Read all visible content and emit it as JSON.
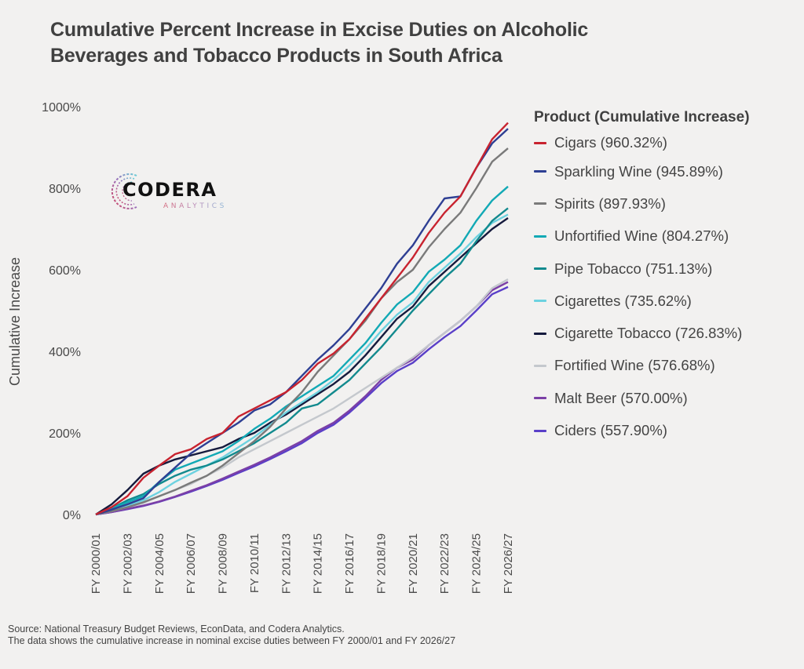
{
  "title": {
    "line1": "Cumulative Percent Increase in Excise Duties on Alcoholic",
    "line2": "Beverages and Tobacco Products in South Africa"
  },
  "logo": {
    "name": "CODERA",
    "sub": "ANALYTICS"
  },
  "legend": {
    "title": "Product (Cumulative Increase)"
  },
  "footnote": {
    "line1": "Source: National Treasury Budget Reviews, EconData, and Codera Analytics.",
    "line2": "The data shows the cumulative increase in nominal excise duties between FY 2000/01 and FY 2026/27"
  },
  "chart_data": {
    "type": "line",
    "title": "Cumulative Percent Increase in Excise Duties on Alcoholic Beverages and Tobacco Products in South Africa",
    "xlabel": "",
    "ylabel": "Cumulative Increase",
    "ylim": [
      0,
      1000
    ],
    "yticks": [
      0,
      200,
      400,
      600,
      800,
      1000
    ],
    "ytick_labels": [
      "0%",
      "200%",
      "400%",
      "600%",
      "800%",
      "1000%"
    ],
    "grid": false,
    "legend_position": "right",
    "x": [
      "FY 2000/01",
      "FY 2001/02",
      "FY 2002/03",
      "FY 2003/04",
      "FY 2004/05",
      "FY 2005/06",
      "FY 2006/07",
      "FY 2007/08",
      "FY 2008/09",
      "FY 2009/10",
      "FY 2010/11",
      "FY 2011/12",
      "FY 2012/13",
      "FY 2013/14",
      "FY 2014/15",
      "FY 2015/16",
      "FY 2016/17",
      "FY 2017/18",
      "FY 2018/19",
      "FY 2019/20",
      "FY 2020/21",
      "FY 2021/22",
      "FY 2022/23",
      "FY 2023/24",
      "FY 2024/25",
      "FY 2025/26",
      "FY 2026/27"
    ],
    "xtick_labels": [
      "FY 2000/01",
      "FY 2002/03",
      "FY 2004/05",
      "FY 2006/07",
      "FY 2008/09",
      "FY 2010/11",
      "FY 2012/13",
      "FY 2014/15",
      "FY 2016/17",
      "FY 2018/19",
      "FY 2020/21",
      "FY 2022/23",
      "FY 2024/25",
      "FY 2026/27"
    ],
    "series": [
      {
        "name": "Cigars",
        "label": "Cigars (960.32%)",
        "final": "960.32%",
        "color": "#c8232f",
        "values": [
          0,
          18,
          45,
          90,
          120,
          148,
          160,
          185,
          200,
          240,
          260,
          280,
          300,
          330,
          370,
          395,
          430,
          480,
          530,
          580,
          630,
          690,
          740,
          780,
          850,
          920,
          960.32
        ]
      },
      {
        "name": "Sparkling Wine",
        "label": "Sparkling Wine (945.89%)",
        "final": "945.89%",
        "color": "#2e3f93",
        "values": [
          0,
          12,
          25,
          40,
          80,
          115,
          150,
          175,
          200,
          225,
          255,
          270,
          300,
          340,
          380,
          415,
          455,
          505,
          555,
          615,
          660,
          720,
          775,
          780,
          850,
          910,
          945.89
        ]
      },
      {
        "name": "Spirits",
        "label": "Spirits (897.93%)",
        "final": "897.93%",
        "color": "#7a7a7a",
        "values": [
          0,
          8,
          18,
          30,
          45,
          60,
          78,
          95,
          120,
          150,
          180,
          215,
          260,
          300,
          350,
          390,
          430,
          475,
          530,
          570,
          600,
          655,
          700,
          740,
          800,
          865,
          897.93
        ]
      },
      {
        "name": "Unfortified Wine",
        "label": "Unfortified Wine (804.27%)",
        "final": "804.27%",
        "color": "#12a9b5",
        "values": [
          0,
          15,
          30,
          45,
          80,
          110,
          125,
          140,
          155,
          180,
          210,
          235,
          265,
          290,
          315,
          340,
          380,
          420,
          470,
          515,
          545,
          595,
          625,
          660,
          720,
          770,
          804.27
        ]
      },
      {
        "name": "Pipe Tobacco",
        "label": "Pipe Tobacco (751.13%)",
        "final": "751.13%",
        "color": "#128a8e",
        "values": [
          0,
          15,
          35,
          50,
          75,
          95,
          110,
          120,
          135,
          155,
          175,
          200,
          225,
          260,
          270,
          300,
          330,
          370,
          410,
          455,
          500,
          540,
          580,
          615,
          670,
          720,
          751.13
        ]
      },
      {
        "name": "Cigarettes",
        "label": "Cigarettes (735.62%)",
        "final": "735.62%",
        "color": "#6dd2e0",
        "values": [
          0,
          10,
          22,
          35,
          55,
          80,
          100,
          120,
          140,
          165,
          190,
          220,
          250,
          275,
          300,
          330,
          365,
          405,
          450,
          490,
          520,
          570,
          605,
          640,
          680,
          715,
          735.62
        ]
      },
      {
        "name": "Cigarette Tobacco",
        "label": "Cigarette Tobacco (726.83%)",
        "final": "726.83%",
        "color": "#151a3d",
        "values": [
          0,
          25,
          60,
          100,
          120,
          135,
          145,
          155,
          165,
          185,
          200,
          225,
          245,
          270,
          295,
          320,
          350,
          390,
          435,
          480,
          510,
          560,
          595,
          630,
          665,
          700,
          726.83
        ]
      },
      {
        "name": "Fortified Wine",
        "label": "Fortified Wine (576.68%)",
        "final": "576.68%",
        "color": "#c4c8cd",
        "values": [
          0,
          8,
          18,
          28,
          45,
          60,
          75,
          95,
          115,
          140,
          160,
          180,
          200,
          220,
          240,
          260,
          285,
          310,
          335,
          360,
          385,
          415,
          445,
          475,
          510,
          555,
          576.68
        ]
      },
      {
        "name": "Malt Beer",
        "label": "Malt Beer (570.00%)",
        "final": "570.00%",
        "color": "#7b3fa6",
        "values": [
          0,
          6,
          14,
          22,
          32,
          44,
          58,
          72,
          88,
          105,
          122,
          140,
          160,
          180,
          205,
          225,
          255,
          290,
          330,
          360,
          380,
          415,
          445,
          475,
          510,
          550,
          570.0
        ]
      },
      {
        "name": "Ciders",
        "label": "Ciders (557.90%)",
        "final": "557.90%",
        "color": "#5a3fc8",
        "values": [
          0,
          6,
          13,
          21,
          31,
          43,
          56,
          70,
          85,
          102,
          118,
          136,
          155,
          175,
          200,
          220,
          250,
          285,
          322,
          352,
          372,
          405,
          435,
          462,
          500,
          540,
          557.9
        ]
      }
    ]
  }
}
